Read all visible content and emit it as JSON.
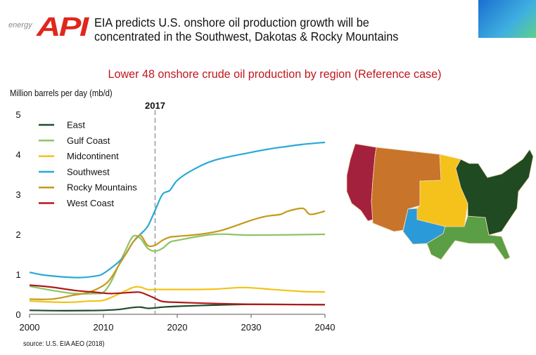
{
  "header": {
    "logo_small": "energy",
    "logo": "API",
    "title_line1": "EIA predicts U.S. onshore oil production growth will be",
    "title_line2": "concentrated in the Southwest, Dakotas & Rocky Mountains"
  },
  "source": "source:  U.S. EIA AEO (2018)",
  "chart_data": {
    "type": "line",
    "title": "Lower 48 onshore crude oil production by region (Reference case)",
    "ylabel": "Million barrels per day (mb/d)",
    "xlabel": "",
    "xlim": [
      2000,
      2040
    ],
    "ylim": [
      0,
      5
    ],
    "xticks": [
      2000,
      2010,
      2020,
      2030,
      2040
    ],
    "yticks": [
      0,
      1,
      2,
      3,
      4,
      5
    ],
    "annotation": {
      "x": 2017,
      "label": "2017"
    },
    "legend_placement": "top-left",
    "grid": false,
    "series": [
      {
        "name": "East",
        "color": "#1e4d2b",
        "points": [
          [
            2000,
            0.1
          ],
          [
            2005,
            0.09
          ],
          [
            2010,
            0.1
          ],
          [
            2012,
            0.12
          ],
          [
            2014,
            0.17
          ],
          [
            2015,
            0.18
          ],
          [
            2016,
            0.15
          ],
          [
            2017,
            0.16
          ],
          [
            2018,
            0.18
          ],
          [
            2020,
            0.2
          ],
          [
            2025,
            0.23
          ],
          [
            2030,
            0.25
          ],
          [
            2040,
            0.24
          ]
        ]
      },
      {
        "name": "Gulf Coast",
        "color": "#8cc466",
        "points": [
          [
            2000,
            0.7
          ],
          [
            2003,
            0.6
          ],
          [
            2006,
            0.52
          ],
          [
            2009,
            0.52
          ],
          [
            2010,
            0.55
          ],
          [
            2011,
            0.8
          ],
          [
            2012,
            1.2
          ],
          [
            2013,
            1.6
          ],
          [
            2014,
            1.95
          ],
          [
            2015,
            1.9
          ],
          [
            2016,
            1.65
          ],
          [
            2017,
            1.58
          ],
          [
            2018,
            1.65
          ],
          [
            2019,
            1.8
          ],
          [
            2020,
            1.85
          ],
          [
            2025,
            2.0
          ],
          [
            2030,
            1.98
          ],
          [
            2040,
            2.0
          ]
        ]
      },
      {
        "name": "Midcontinent",
        "color": "#f2c318",
        "points": [
          [
            2000,
            0.33
          ],
          [
            2005,
            0.3
          ],
          [
            2008,
            0.33
          ],
          [
            2010,
            0.35
          ],
          [
            2012,
            0.5
          ],
          [
            2014,
            0.67
          ],
          [
            2015,
            0.68
          ],
          [
            2016,
            0.62
          ],
          [
            2017,
            0.62
          ],
          [
            2020,
            0.62
          ],
          [
            2025,
            0.63
          ],
          [
            2029,
            0.67
          ],
          [
            2033,
            0.62
          ],
          [
            2037,
            0.57
          ],
          [
            2040,
            0.56
          ]
        ]
      },
      {
        "name": "Southwest",
        "color": "#29a9d8",
        "points": [
          [
            2000,
            1.05
          ],
          [
            2002,
            0.98
          ],
          [
            2005,
            0.93
          ],
          [
            2007,
            0.92
          ],
          [
            2009,
            0.96
          ],
          [
            2010,
            1.02
          ],
          [
            2012,
            1.3
          ],
          [
            2013,
            1.5
          ],
          [
            2014,
            1.8
          ],
          [
            2015,
            2.0
          ],
          [
            2016,
            2.2
          ],
          [
            2017,
            2.6
          ],
          [
            2018,
            3.0
          ],
          [
            2019,
            3.1
          ],
          [
            2020,
            3.35
          ],
          [
            2022,
            3.6
          ],
          [
            2025,
            3.85
          ],
          [
            2030,
            4.05
          ],
          [
            2033,
            4.15
          ],
          [
            2035,
            4.2
          ],
          [
            2037,
            4.25
          ],
          [
            2040,
            4.3
          ]
        ]
      },
      {
        "name": "Rocky Mountains",
        "color": "#c49a1c",
        "points": [
          [
            2000,
            0.38
          ],
          [
            2003,
            0.38
          ],
          [
            2006,
            0.48
          ],
          [
            2008,
            0.55
          ],
          [
            2010,
            0.72
          ],
          [
            2011,
            0.9
          ],
          [
            2012,
            1.2
          ],
          [
            2013,
            1.5
          ],
          [
            2014,
            1.8
          ],
          [
            2015,
            1.97
          ],
          [
            2016,
            1.72
          ],
          [
            2017,
            1.73
          ],
          [
            2018,
            1.85
          ],
          [
            2019,
            1.93
          ],
          [
            2020,
            1.95
          ],
          [
            2023,
            2.0
          ],
          [
            2026,
            2.1
          ],
          [
            2030,
            2.35
          ],
          [
            2032,
            2.45
          ],
          [
            2034,
            2.5
          ],
          [
            2035,
            2.58
          ],
          [
            2037,
            2.65
          ],
          [
            2038,
            2.5
          ],
          [
            2040,
            2.58
          ]
        ]
      },
      {
        "name": "West Coast",
        "color": "#b01a1a",
        "points": [
          [
            2000,
            0.73
          ],
          [
            2003,
            0.68
          ],
          [
            2006,
            0.6
          ],
          [
            2009,
            0.55
          ],
          [
            2011,
            0.52
          ],
          [
            2014,
            0.55
          ],
          [
            2015,
            0.55
          ],
          [
            2016,
            0.48
          ],
          [
            2017,
            0.4
          ],
          [
            2018,
            0.32
          ],
          [
            2020,
            0.3
          ],
          [
            2025,
            0.27
          ],
          [
            2030,
            0.25
          ],
          [
            2040,
            0.24
          ]
        ]
      }
    ]
  },
  "map": {
    "regions": [
      {
        "name": "West Coast",
        "color": "#a3213c"
      },
      {
        "name": "Rocky Mountains",
        "color": "#c8742a"
      },
      {
        "name": "Midcontinent",
        "color": "#f5c21b"
      },
      {
        "name": "Southwest",
        "color": "#2a9ad8"
      },
      {
        "name": "Gulf Coast",
        "color": "#5a9e46"
      },
      {
        "name": "East",
        "color": "#1f4a22"
      }
    ]
  }
}
